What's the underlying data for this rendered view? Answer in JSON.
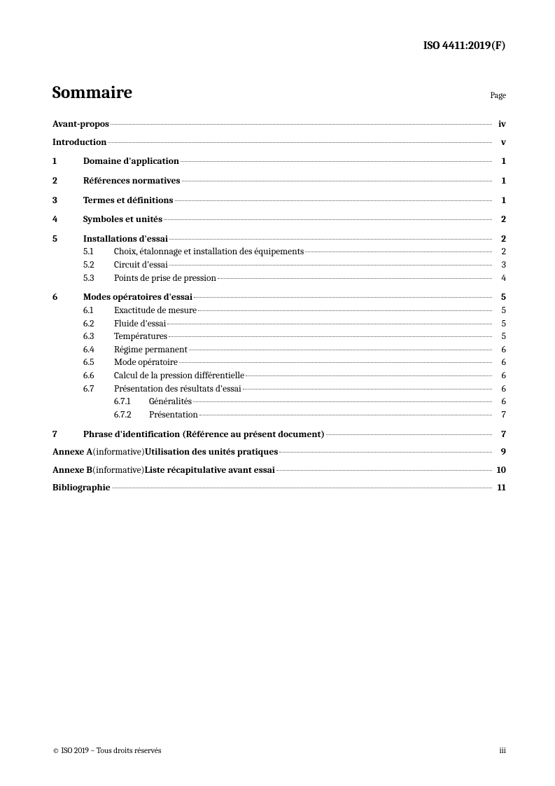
{
  "header": "ISO 4411:2019(F)",
  "title": "Sommaire",
  "pageLabel": "Page",
  "entries": {
    "avantPropos": {
      "title": "Avant-propos",
      "page": "iv"
    },
    "introduction": {
      "title": "Introduction",
      "page": "v"
    },
    "s1": {
      "num": "1",
      "title": "Domaine d'application",
      "page": "1"
    },
    "s2": {
      "num": "2",
      "title": "Références normatives",
      "page": "1"
    },
    "s3": {
      "num": "3",
      "title": "Termes et définitions",
      "page": "1"
    },
    "s4": {
      "num": "4",
      "title": "Symboles et unités",
      "page": "2"
    },
    "s5": {
      "num": "5",
      "title": "Installations d'essai",
      "page": "2"
    },
    "s5_1": {
      "num": "5.1",
      "title": "Choix, étalonnage et installation des équipements",
      "page": "2"
    },
    "s5_2": {
      "num": "5.2",
      "title": "Circuit d'essai",
      "page": "3"
    },
    "s5_3": {
      "num": "5.3",
      "title": "Points de prise de pression",
      "page": "4"
    },
    "s6": {
      "num": "6",
      "title": "Modes opératoires d'essai",
      "page": "5"
    },
    "s6_1": {
      "num": "6.1",
      "title": "Exactitude de mesure",
      "page": "5"
    },
    "s6_2": {
      "num": "6.2",
      "title": "Fluide d'essai",
      "page": "5"
    },
    "s6_3": {
      "num": "6.3",
      "title": "Températures",
      "page": "5"
    },
    "s6_4": {
      "num": "6.4",
      "title": "Régime permanent",
      "page": "6"
    },
    "s6_5": {
      "num": "6.5",
      "title": "Mode opératoire",
      "page": "6"
    },
    "s6_6": {
      "num": "6.6",
      "title": "Calcul de la pression différentielle",
      "page": "6"
    },
    "s6_7": {
      "num": "6.7",
      "title": "Présentation des résultats d'essai",
      "page": "6"
    },
    "s6_7_1": {
      "num": "6.7.1",
      "title": "Généralités",
      "page": "6"
    },
    "s6_7_2": {
      "num": "6.7.2",
      "title": "Présentation",
      "page": "7"
    },
    "s7": {
      "num": "7",
      "title": "Phrase d'identification (Référence au présent document)",
      "page": "7"
    },
    "annexA": {
      "prefix": "Annexe A",
      "paren": " (informative) ",
      "title": "Utilisation des unités pratiques",
      "page": "9"
    },
    "annexB": {
      "prefix": "Annexe B",
      "paren": " (informative) ",
      "title": "Liste récapitulative avant essai",
      "page": "10"
    },
    "biblio": {
      "title": "Bibliographie",
      "page": "11"
    }
  },
  "footer": {
    "copyright": "© ISO 2019 – Tous droits réservés",
    "pageNum": "iii"
  }
}
